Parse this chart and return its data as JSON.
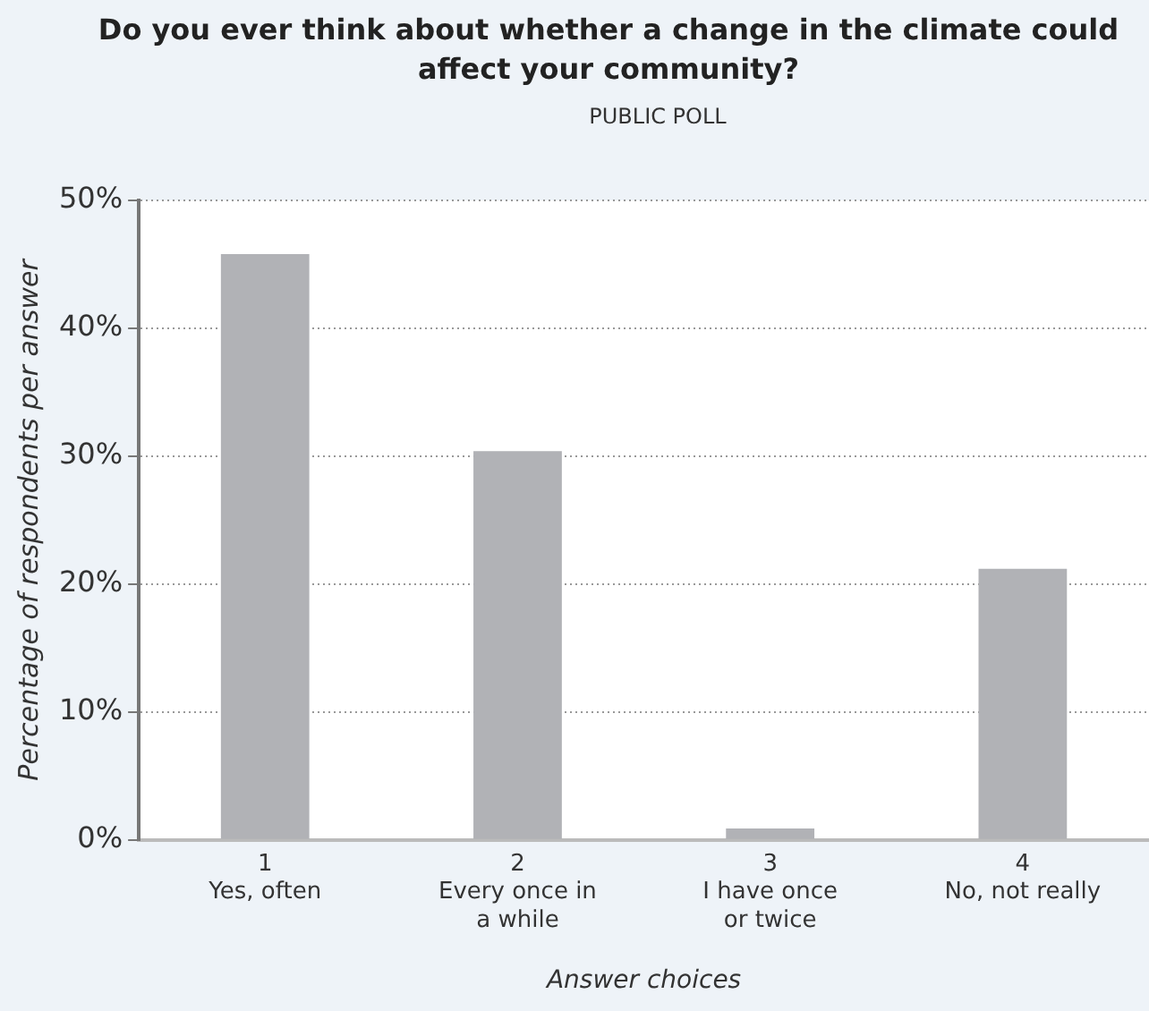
{
  "chart_data": {
    "type": "bar",
    "title": "Do you ever think about whether a change in the climate could affect your community?",
    "subtitle": "PUBLIC POLL",
    "xlabel": "Answer choices",
    "ylabel": "Percentage of respondents per answer",
    "categories": [
      "1\nYes, often",
      "2\nEvery once in\na while",
      "3\nI have once\nor twice",
      "4\nNo, not really"
    ],
    "values": [
      45.8,
      30.4,
      0.9,
      21.2
    ],
    "color": "#b1b2b6",
    "ylim": [
      0,
      50
    ],
    "yticks": [
      {
        "value": 0,
        "label": "0%"
      },
      {
        "value": 10,
        "label": "10%"
      },
      {
        "value": 20,
        "label": "20%"
      },
      {
        "value": 30,
        "label": "30%"
      },
      {
        "value": 40,
        "label": "40%"
      },
      {
        "value": 50,
        "label": "50%"
      }
    ],
    "grid": "y",
    "legend": false
  }
}
